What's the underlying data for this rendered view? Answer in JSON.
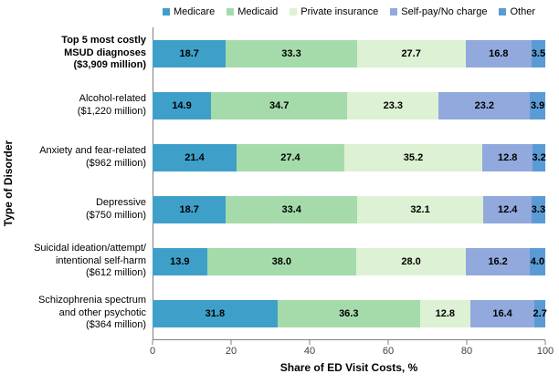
{
  "chart_data": {
    "type": "bar",
    "stacked": true,
    "orientation": "horizontal",
    "title": "",
    "xlabel": "Share of ED Visit Costs,  %",
    "ylabel": "Type of Disorder",
    "xlim": [
      0,
      100
    ],
    "xticks": [
      0,
      20,
      40,
      60,
      80,
      100
    ],
    "grid": false,
    "legend_position": "top",
    "categories": [
      {
        "lines": [
          "Top 5 most costly",
          "MSUD diagnoses",
          "($3,909 million)"
        ],
        "bold": true
      },
      {
        "lines": [
          "Alcohol-related",
          "($1,220 million)"
        ],
        "bold": false
      },
      {
        "lines": [
          "Anxiety and fear-related",
          "($962 million)"
        ],
        "bold": false
      },
      {
        "lines": [
          "Depressive",
          "($750 million)"
        ],
        "bold": false
      },
      {
        "lines": [
          "Suicidal ideation/attempt/",
          "intentional self-harm",
          "($612 million)"
        ],
        "bold": false
      },
      {
        "lines": [
          "Schizophrenia spectrum",
          "and other psychotic",
          "($364 million)"
        ],
        "bold": false
      }
    ],
    "series": [
      {
        "name": "Medicare",
        "color": "#3EA0C9",
        "values": [
          18.7,
          14.9,
          21.4,
          18.7,
          13.9,
          31.8
        ]
      },
      {
        "name": "Medicaid",
        "color": "#A5DBAA",
        "values": [
          33.3,
          34.7,
          27.4,
          33.4,
          38.0,
          36.3
        ]
      },
      {
        "name": "Private insurance",
        "color": "#DDF1D4",
        "values": [
          27.7,
          23.3,
          35.2,
          32.1,
          28.0,
          12.8
        ]
      },
      {
        "name": "Self-pay/No charge",
        "color": "#91A9DD",
        "values": [
          16.8,
          23.2,
          12.8,
          12.4,
          16.2,
          16.4
        ]
      },
      {
        "name": "Other",
        "color": "#5B9BD5",
        "values": [
          3.5,
          3.9,
          3.2,
          3.3,
          4.0,
          2.7
        ]
      }
    ]
  },
  "colors": {
    "axis_line": "#808080",
    "tick_label": "#404040",
    "value_label": "#000000"
  }
}
